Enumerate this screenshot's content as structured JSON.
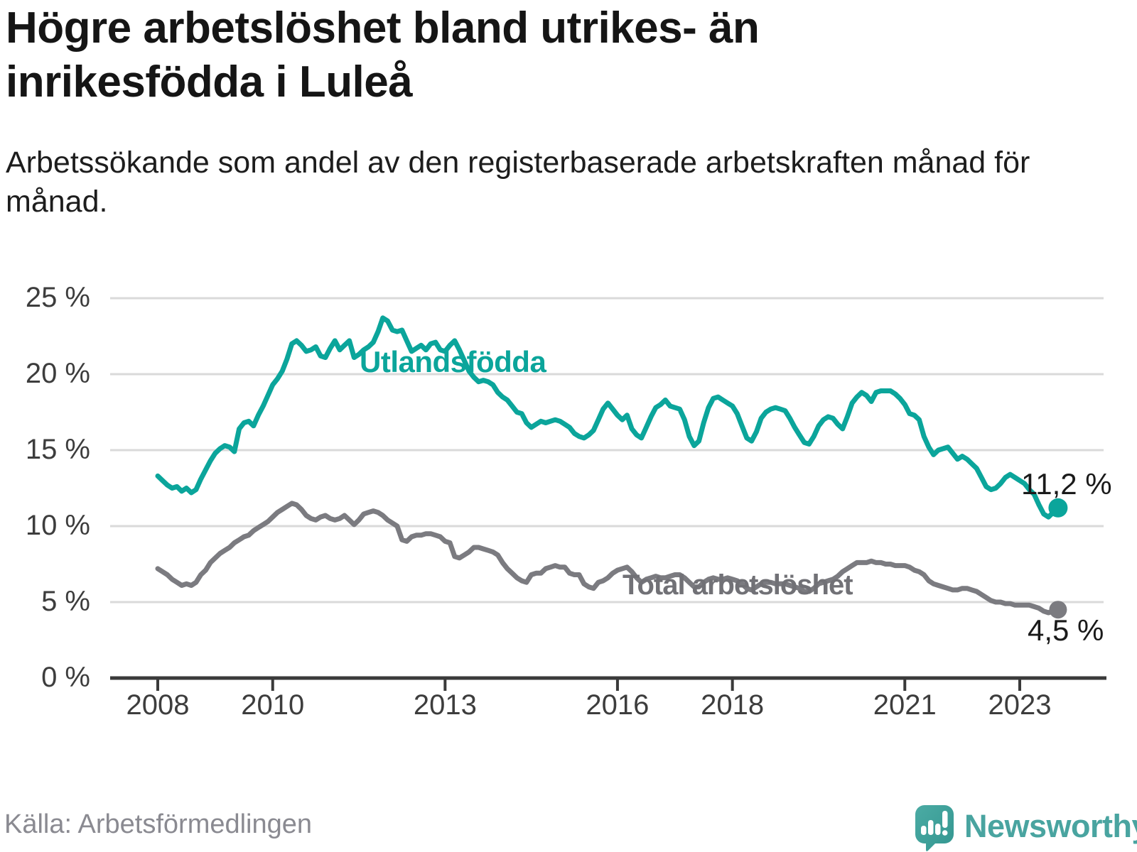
{
  "header": {
    "title": "Högre arbetslöshet bland utrikes- än inrikesfödda i Luleå",
    "subtitle": "Arbetssökande som andel av den registerbaserade arbetskraften månad för månad."
  },
  "footer": {
    "source": "Källa: Arbetsförmedlingen",
    "brand": "Newsworthy",
    "brand_color": "#49A4A0",
    "logo_color": "#3FA09A"
  },
  "chart_data": {
    "type": "line",
    "frequency": "monthly",
    "x_start": "2008-01",
    "x_end": "2023-09",
    "grid": true,
    "ylim": [
      0,
      25
    ],
    "y_tick_values": [
      0,
      5,
      10,
      15,
      20,
      25
    ],
    "y_tick_labels": [
      "0 %",
      "5 %",
      "10 %",
      "15 %",
      "20 %",
      "25 %"
    ],
    "x_tick_values": [
      2008,
      2010,
      2013,
      2016,
      2018,
      2021,
      2023
    ],
    "x_tick_labels": [
      "2008",
      "2010",
      "2013",
      "2016",
      "2018",
      "2021",
      "2023"
    ],
    "axis_color": "#3a3a3a",
    "grid_color": "#dadada",
    "series": [
      {
        "name": "Utlandsfödda",
        "color": "#0BA59B",
        "end_label": "11,2 %",
        "last_value": 11.2,
        "values": [
          13.3,
          13.0,
          12.7,
          12.5,
          12.6,
          12.3,
          12.5,
          12.2,
          12.4,
          13.1,
          13.7,
          14.3,
          14.8,
          15.1,
          15.3,
          15.2,
          14.9,
          16.4,
          16.8,
          16.9,
          16.6,
          17.3,
          17.9,
          18.6,
          19.3,
          19.7,
          20.2,
          21.0,
          22.0,
          22.2,
          21.9,
          21.5,
          21.6,
          21.8,
          21.2,
          21.1,
          21.7,
          22.2,
          21.6,
          21.9,
          22.2,
          21.1,
          21.3,
          21.6,
          21.8,
          22.1,
          22.8,
          23.7,
          23.5,
          22.9,
          22.8,
          22.9,
          22.2,
          21.5,
          21.7,
          21.9,
          21.6,
          22.0,
          22.1,
          21.6,
          21.5,
          21.9,
          22.2,
          21.6,
          20.9,
          20.2,
          19.8,
          19.5,
          19.6,
          19.5,
          19.3,
          18.8,
          18.5,
          18.3,
          17.9,
          17.5,
          17.4,
          16.8,
          16.5,
          16.7,
          16.9,
          16.8,
          16.9,
          17.0,
          16.9,
          16.7,
          16.5,
          16.1,
          15.9,
          15.8,
          16.0,
          16.3,
          17.0,
          17.7,
          18.1,
          17.7,
          17.3,
          17.0,
          17.3,
          16.4,
          16.0,
          15.8,
          16.5,
          17.2,
          17.8,
          18.0,
          18.3,
          17.9,
          17.8,
          17.7,
          17.0,
          15.9,
          15.3,
          15.6,
          16.8,
          17.8,
          18.4,
          18.5,
          18.3,
          18.1,
          17.9,
          17.4,
          16.6,
          15.8,
          15.6,
          16.2,
          17.1,
          17.5,
          17.7,
          17.8,
          17.7,
          17.6,
          17.1,
          16.5,
          16.0,
          15.5,
          15.4,
          15.9,
          16.6,
          17.0,
          17.2,
          17.1,
          16.7,
          16.4,
          17.2,
          18.1,
          18.5,
          18.8,
          18.6,
          18.2,
          18.8,
          18.9,
          18.9,
          18.9,
          18.7,
          18.4,
          18.0,
          17.4,
          17.3,
          17.0,
          15.9,
          15.2,
          14.7,
          15.0,
          15.1,
          15.2,
          14.8,
          14.4,
          14.6,
          14.4,
          14.1,
          13.8,
          13.2,
          12.6,
          12.4,
          12.5,
          12.8,
          13.2,
          13.4,
          13.2,
          13.0,
          12.8,
          12.4,
          12.1,
          11.4,
          10.8,
          10.6,
          10.9,
          11.2
        ]
      },
      {
        "name": "Total arbetslöshet",
        "color": "#7B7B80",
        "label_color": "#717176",
        "end_label": "4,5 %",
        "last_value": 4.5,
        "values": [
          7.2,
          7.0,
          6.8,
          6.5,
          6.3,
          6.1,
          6.2,
          6.1,
          6.3,
          6.8,
          7.1,
          7.6,
          7.9,
          8.2,
          8.4,
          8.6,
          8.9,
          9.1,
          9.3,
          9.4,
          9.7,
          9.9,
          10.1,
          10.3,
          10.6,
          10.9,
          11.1,
          11.3,
          11.5,
          11.4,
          11.1,
          10.7,
          10.5,
          10.4,
          10.6,
          10.7,
          10.5,
          10.4,
          10.5,
          10.7,
          10.4,
          10.1,
          10.4,
          10.8,
          10.9,
          11.0,
          10.9,
          10.7,
          10.4,
          10.2,
          10.0,
          9.1,
          9.0,
          9.3,
          9.4,
          9.4,
          9.5,
          9.5,
          9.4,
          9.3,
          9.0,
          8.9,
          8.0,
          7.9,
          8.1,
          8.3,
          8.6,
          8.6,
          8.5,
          8.4,
          8.3,
          8.1,
          7.6,
          7.2,
          6.9,
          6.6,
          6.4,
          6.3,
          6.8,
          6.9,
          6.9,
          7.2,
          7.3,
          7.4,
          7.3,
          7.3,
          6.9,
          6.8,
          6.8,
          6.2,
          6.0,
          5.9,
          6.3,
          6.4,
          6.6,
          6.9,
          7.1,
          7.2,
          7.3,
          7.0,
          6.6,
          6.3,
          6.5,
          6.6,
          6.7,
          6.6,
          6.6,
          6.7,
          6.8,
          6.8,
          6.6,
          6.3,
          6.0,
          6.0,
          6.3,
          6.5,
          6.6,
          6.5,
          6.5,
          6.6,
          6.5,
          6.4,
          6.2,
          5.9,
          5.8,
          6.0,
          6.2,
          6.3,
          6.3,
          6.2,
          6.2,
          6.2,
          6.1,
          6.0,
          5.9,
          5.7,
          5.7,
          5.9,
          6.2,
          6.3,
          6.4,
          6.5,
          6.7,
          7.0,
          7.2,
          7.4,
          7.6,
          7.6,
          7.6,
          7.7,
          7.6,
          7.6,
          7.5,
          7.5,
          7.4,
          7.4,
          7.4,
          7.3,
          7.1,
          7.0,
          6.8,
          6.4,
          6.2,
          6.1,
          6.0,
          5.9,
          5.8,
          5.8,
          5.9,
          5.9,
          5.8,
          5.7,
          5.5,
          5.3,
          5.1,
          5.0,
          5.0,
          4.9,
          4.9,
          4.8,
          4.8,
          4.8,
          4.8,
          4.7,
          4.6,
          4.4,
          4.3,
          4.4,
          4.5
        ]
      }
    ]
  }
}
